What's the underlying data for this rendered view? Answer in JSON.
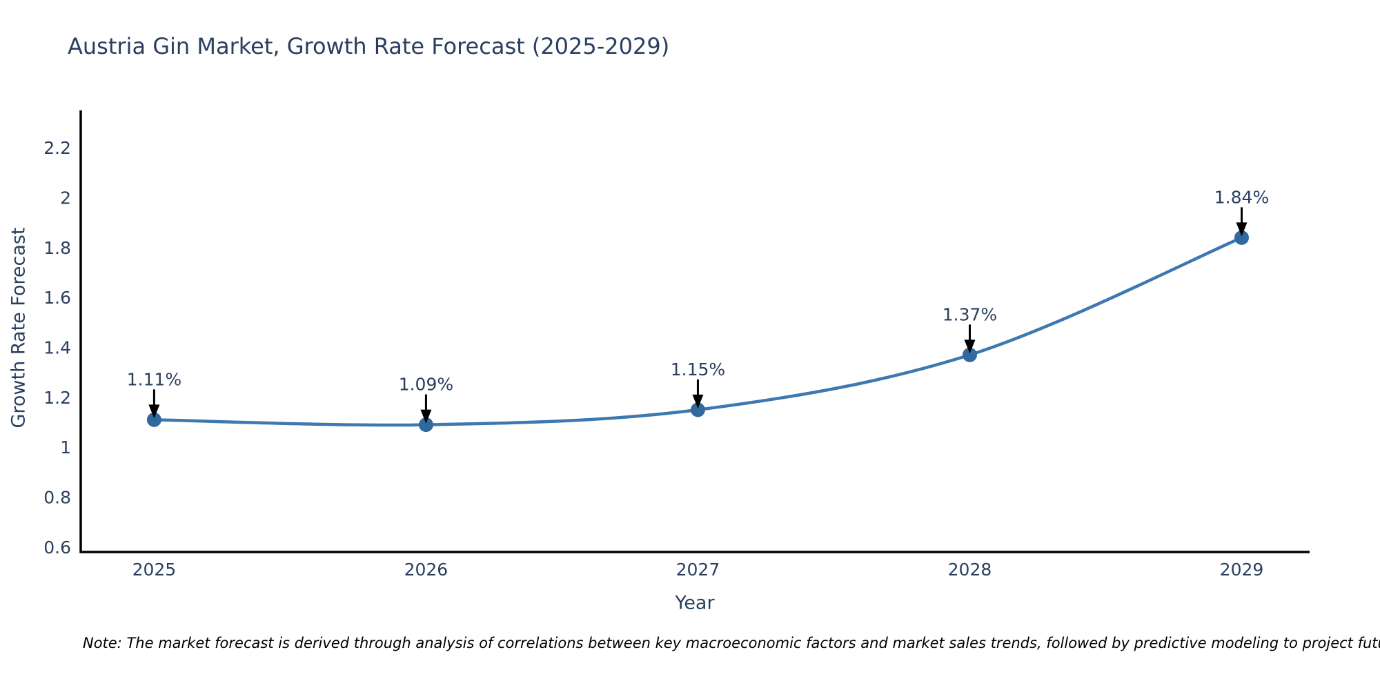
{
  "chart_data": {
    "type": "line",
    "title": "Austria Gin Market, Growth Rate Forecast (2025-2029)",
    "xlabel": "Year",
    "ylabel": "Growth Rate Forecast",
    "x": [
      2025,
      2026,
      2027,
      2028,
      2029
    ],
    "series": [
      {
        "name": "Growth Rate Forecast",
        "values": [
          1.11,
          1.09,
          1.15,
          1.37,
          1.84
        ],
        "point_labels": [
          "1.11%",
          "1.09%",
          "1.15%",
          "1.37%",
          "1.84%"
        ]
      }
    ],
    "xtick_labels": [
      "2025",
      "2026",
      "2027",
      "2028",
      "2029"
    ],
    "ytick_values": [
      0.6,
      0.8,
      1.0,
      1.2,
      1.4,
      1.6,
      1.8,
      2.0,
      2.2
    ],
    "ytick_labels": [
      "0.6",
      "0.8",
      "1",
      "1.2",
      "1.4",
      "1.6",
      "1.8",
      "2",
      "2.2"
    ],
    "xlim": [
      2024.73,
      2029.25
    ],
    "ylim": [
      0.58,
      2.35
    ],
    "grid": false,
    "legend": false,
    "line_shape": "spline",
    "colors": {
      "line": "#3d78b0",
      "marker": "#31689e",
      "axis": "#000000",
      "arrow": "#000000",
      "text": "#2a3f5f",
      "background": "#ffffff"
    }
  },
  "note": {
    "text": "Note: The market forecast is derived through analysis of correlations between key macroeconomic factors and market sales trends, followed by predictive modeling to project future sales"
  }
}
